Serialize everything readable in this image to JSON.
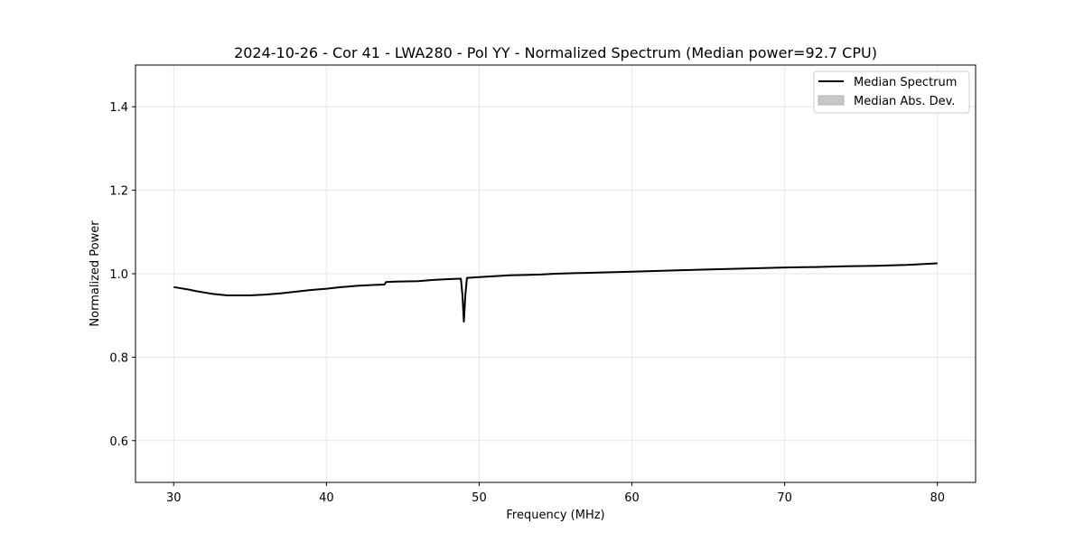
{
  "chart_data": {
    "type": "line",
    "title": "2024-10-26 - Cor 41 - LWA280 - Pol YY - Normalized Spectrum (Median power=92.7 CPU)",
    "xlabel": "Frequency (MHz)",
    "ylabel": "Normalized Power",
    "xlim": [
      27.5,
      82.5
    ],
    "ylim": [
      0.5,
      1.5
    ],
    "xticks": [
      30,
      40,
      50,
      60,
      70,
      80
    ],
    "yticks": [
      0.6,
      0.8,
      1.0,
      1.2,
      1.4
    ],
    "xtick_labels": [
      "30",
      "40",
      "50",
      "60",
      "70",
      "80"
    ],
    "ytick_labels": [
      "0.6",
      "0.8",
      "1.0",
      "1.2",
      "1.4"
    ],
    "grid": true,
    "legend_position": "top-right",
    "series": [
      {
        "name": "Median Spectrum",
        "color": "#000000",
        "x": [
          30,
          30.5,
          31,
          31.5,
          32,
          32.5,
          33,
          33.5,
          34,
          35,
          36,
          37,
          38,
          39,
          40,
          41,
          42,
          43,
          43.8,
          43.9,
          44.5,
          46,
          47,
          48,
          48.8,
          48.9,
          49.0,
          49.1,
          49.2,
          50,
          51,
          52,
          53,
          54,
          55,
          56,
          57,
          58,
          60,
          62,
          64,
          66,
          68,
          70,
          72,
          74,
          76,
          78,
          80
        ],
        "y": [
          0.968,
          0.965,
          0.962,
          0.958,
          0.955,
          0.952,
          0.95,
          0.948,
          0.948,
          0.948,
          0.95,
          0.953,
          0.957,
          0.961,
          0.964,
          0.968,
          0.971,
          0.973,
          0.974,
          0.98,
          0.981,
          0.982,
          0.985,
          0.987,
          0.988,
          0.95,
          0.885,
          0.95,
          0.99,
          0.992,
          0.994,
          0.996,
          0.997,
          0.998,
          1.0,
          1.001,
          1.002,
          1.003,
          1.005,
          1.007,
          1.009,
          1.011,
          1.013,
          1.015,
          1.016,
          1.018,
          1.019,
          1.021,
          1.025
        ]
      },
      {
        "name": "Median Abs. Dev.",
        "color": "#c8c8c8",
        "kind": "band"
      }
    ]
  }
}
